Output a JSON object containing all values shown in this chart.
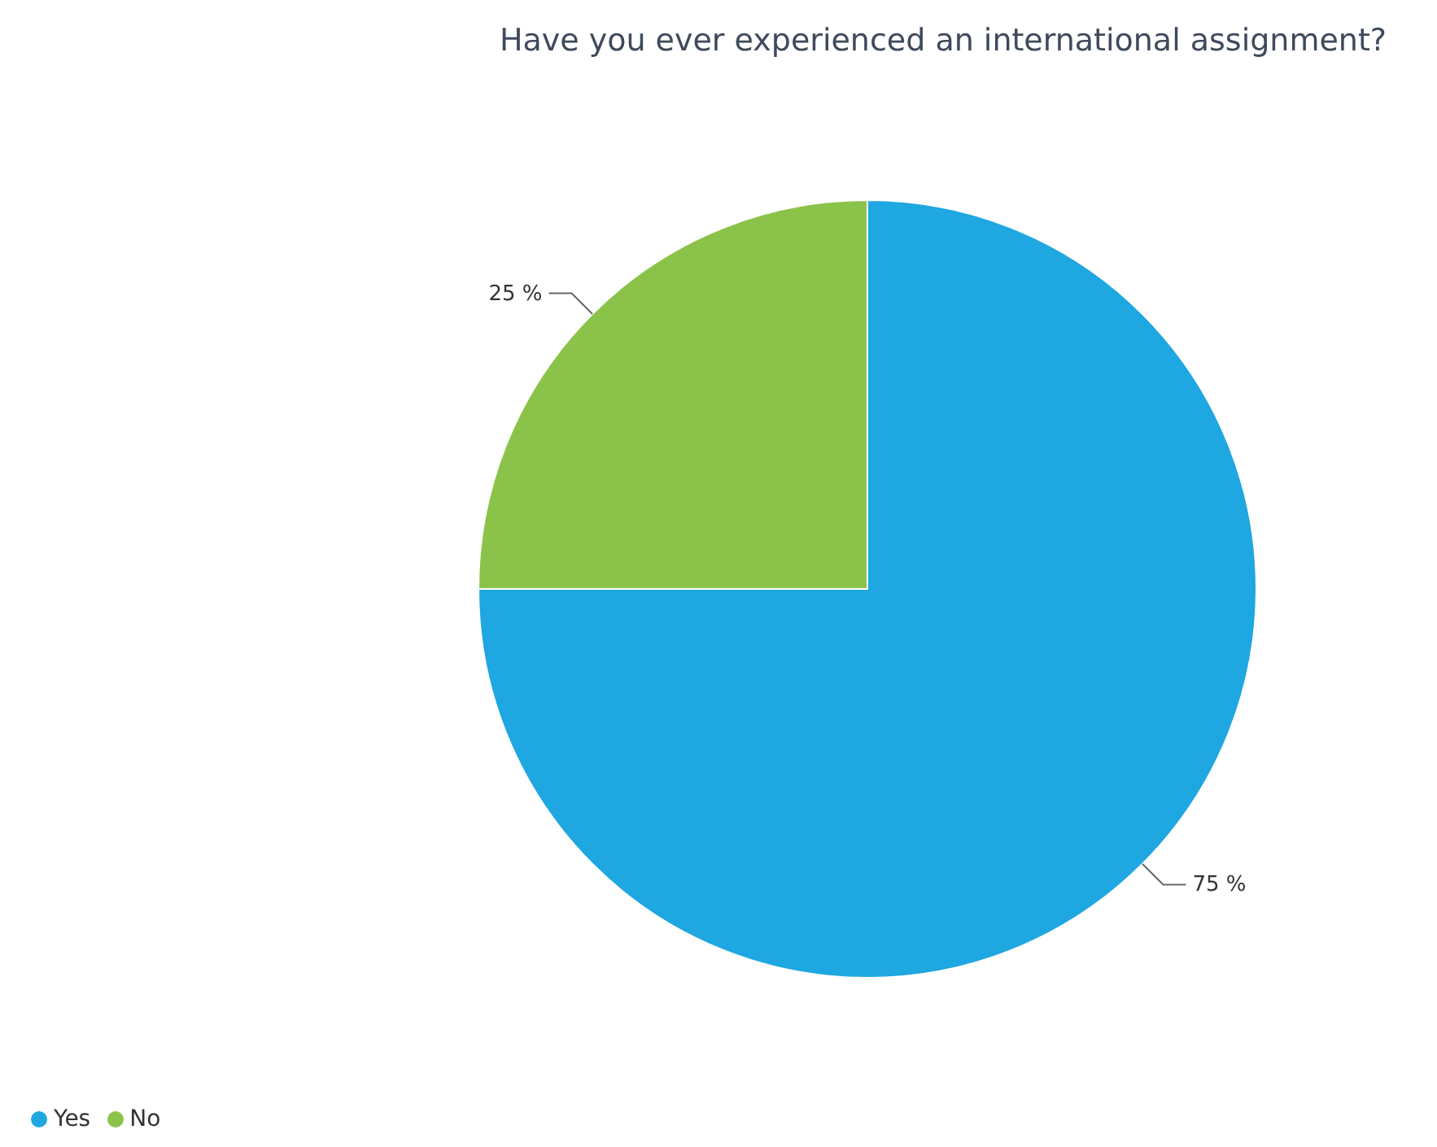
{
  "chart_data": {
    "type": "pie",
    "title": "Have you ever experienced an international assignment?",
    "categories": [
      "Yes",
      "No"
    ],
    "values": [
      75,
      25
    ],
    "colors": [
      "#1ea7e1",
      "#8bc34a"
    ],
    "value_labels": [
      "75 %",
      "25 %"
    ],
    "legend": "bottom left"
  }
}
